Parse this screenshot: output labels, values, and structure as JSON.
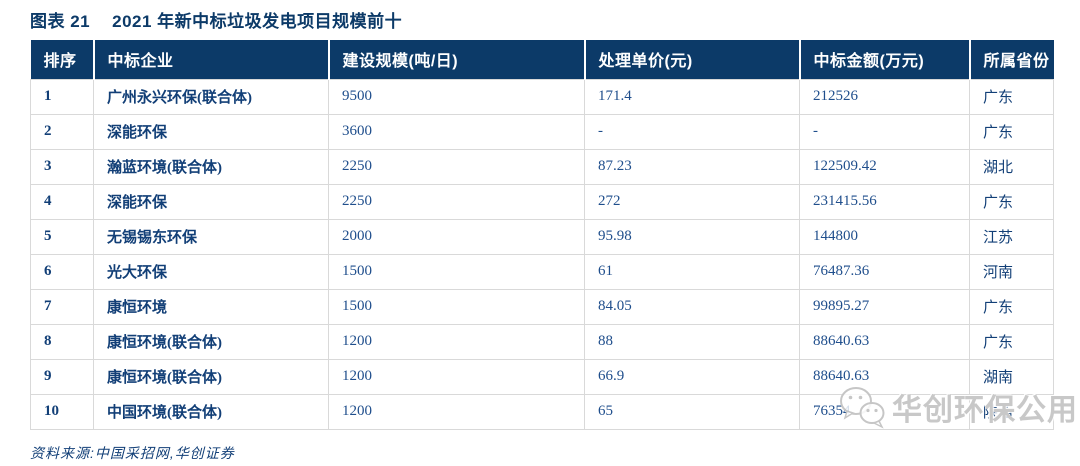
{
  "figure": {
    "label": "图表 21",
    "caption": "2021 年新中标垃圾发电项目规模前十"
  },
  "table": {
    "columns": [
      "排序",
      "中标企业",
      "建设规模(吨/日)",
      "处理单价(元)",
      "中标金额(万元)",
      "所属省份"
    ],
    "rows": [
      [
        "1",
        "广州永兴环保(联合体)",
        "9500",
        "171.4",
        "212526",
        "广东"
      ],
      [
        "2",
        "深能环保",
        "3600",
        "-",
        "-",
        "广东"
      ],
      [
        "3",
        "瀚蓝环境(联合体)",
        "2250",
        "87.23",
        "122509.42",
        "湖北"
      ],
      [
        "4",
        "深能环保",
        "2250",
        "272",
        "231415.56",
        "广东"
      ],
      [
        "5",
        "无锡锡东环保",
        "2000",
        "95.98",
        "144800",
        "江苏"
      ],
      [
        "6",
        "光大环保",
        "1500",
        "61",
        "76487.36",
        "河南"
      ],
      [
        "7",
        "康恒环境",
        "1500",
        "84.05",
        "99895.27",
        "广东"
      ],
      [
        "8",
        "康恒环境(联合体)",
        "1200",
        "88",
        "88640.63",
        "广东"
      ],
      [
        "9",
        "康恒环境(联合体)",
        "1200",
        "66.9",
        "88640.63",
        "湖南"
      ],
      [
        "10",
        "中国环境(联合体)",
        "1200",
        "65",
        "76354",
        "陕西"
      ]
    ]
  },
  "source": {
    "text": "资料来源:中国采招网,华创证券"
  },
  "watermark": {
    "icon": "wechat-logo-icon",
    "text": "华创环保公用"
  },
  "colors": {
    "header_bg": "#0c3a68",
    "header_text": "#ffffff",
    "title_text": "#0c3a68",
    "text_dark": "#123f77",
    "text_number": "#1f4e8c",
    "row_border": "#d9d9d9",
    "watermark_gray": "#c8c8c8"
  }
}
